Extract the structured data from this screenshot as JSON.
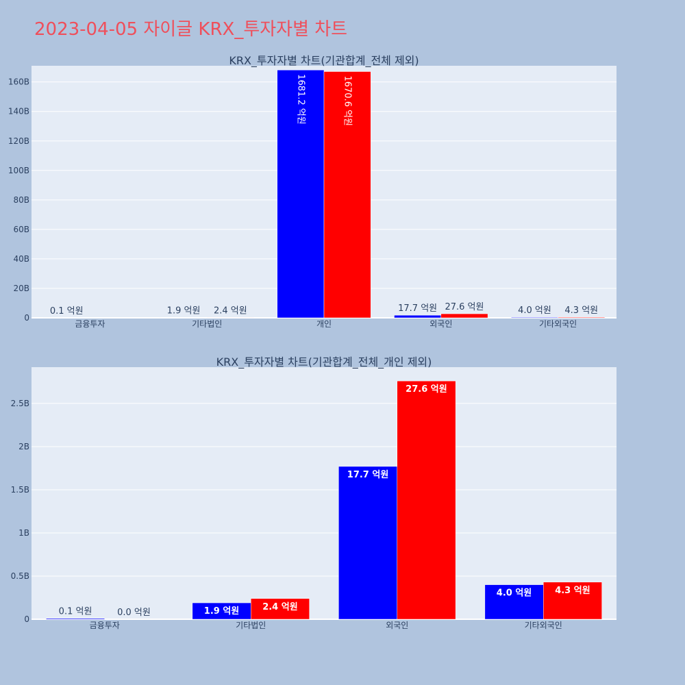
{
  "page_title": "2023-04-05 자이글 KRX_투자자별 차트",
  "colors": {
    "background": "#b0c4de",
    "plot_bg": "#e5ecf6",
    "title_color": "#ef4f5b",
    "text": "#2a3f5f",
    "buy": "#0000ff",
    "sell": "#ff0000"
  },
  "chart_data": [
    {
      "type": "bar",
      "title": "KRX_투자자별 차트(기관합계_전체 제외)",
      "categories": [
        "금융투자",
        "기타법인",
        "개인",
        "외국인",
        "기타외국인"
      ],
      "series": [
        {
          "color": "#0000ff",
          "values": [
            10000000,
            190000000,
            168120000000,
            1770000000,
            400000000
          ],
          "labels": [
            "0.1 억원",
            "1.9 억원",
            "1681.2 억원",
            "17.7 억원",
            "4.0 억원"
          ]
        },
        {
          "color": "#ff0000",
          "values": [
            null,
            240000000,
            167060000000,
            2760000000,
            430000000
          ],
          "labels": [
            "",
            "2.4 억원",
            "1670.6 억원",
            "27.6 억원",
            "4.3 억원"
          ]
        }
      ],
      "ylim": [
        0,
        171000000000
      ],
      "yticks": [
        0,
        20000000000,
        40000000000,
        60000000000,
        80000000000,
        100000000000,
        120000000000,
        140000000000,
        160000000000
      ],
      "ytick_labels": [
        "0",
        "20B",
        "40B",
        "60B",
        "80B",
        "100B",
        "120B",
        "140B",
        "160B"
      ],
      "grid": true
    },
    {
      "type": "bar",
      "title": "KRX_투자자별 차트(기관합계_전체_개인 제외)",
      "categories": [
        "금융투자",
        "기타법인",
        "외국인",
        "기타외국인"
      ],
      "series": [
        {
          "color": "#0000ff",
          "values": [
            10000000,
            190000000,
            1770000000,
            400000000
          ],
          "labels": [
            "0.1 억원",
            "1.9 억원",
            "17.7 억원",
            "4.0 억원"
          ]
        },
        {
          "color": "#ff0000",
          "values": [
            0,
            240000000,
            2760000000,
            430000000
          ],
          "labels": [
            "0.0 억원",
            "2.4 억원",
            "27.6 억원",
            "4.3 억원"
          ]
        }
      ],
      "ylim": [
        0,
        2920000000
      ],
      "yticks": [
        0,
        500000000,
        1000000000,
        1500000000,
        2000000000,
        2500000000
      ],
      "ytick_labels": [
        "0",
        "0.5B",
        "1B",
        "1.5B",
        "2B",
        "2.5B"
      ],
      "grid": true
    }
  ]
}
